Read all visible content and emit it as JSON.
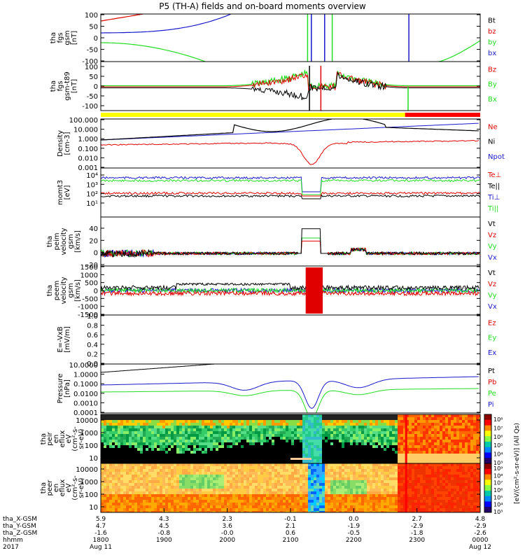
{
  "title": "P5 (TH-A) fields and on-board moments overview",
  "colors": {
    "black": "#000000",
    "red": "#e00000",
    "green": "#22dd22",
    "blue": "#1a1acc",
    "yellow": "#ffff00",
    "barRed": "#ff0000"
  },
  "chart_data": [
    {
      "type": "line",
      "panel": "fgs-gsm",
      "ylabel_lines": [
        "tha",
        "fgs",
        "gsm",
        "[nT]"
      ],
      "ylim": [
        -100,
        100
      ],
      "yticks": [
        "100",
        "50",
        "0",
        "-50",
        "-100"
      ],
      "legend": [
        {
          "name": "Bt",
          "color": "black"
        },
        {
          "name": "bz",
          "color": "red"
        },
        {
          "name": "by",
          "color": "green"
        },
        {
          "name": "bx",
          "color": "blue"
        }
      ]
    },
    {
      "type": "line",
      "panel": "fgs-gsm-t89",
      "ylabel_lines": [
        "tha",
        "fgs",
        "gsm-t89",
        "[nT]"
      ],
      "ylim": [
        -125,
        125
      ],
      "yticks": [
        "100",
        "50",
        "0",
        "-50",
        "-100"
      ],
      "legend": [
        {
          "name": "Bz",
          "color": "red"
        },
        {
          "name": "By",
          "color": "green"
        },
        {
          "name": "Bx",
          "color": "green"
        }
      ]
    },
    {
      "type": "line",
      "panel": "density",
      "ylabel_lines": [
        "Density",
        "[cm-3]"
      ],
      "yscale": "log",
      "yticks": [
        "100.000",
        "10.000",
        "1.000",
        "0.100",
        "0.010",
        "0.001"
      ],
      "legend": [
        {
          "name": "Ne",
          "color": "red"
        },
        {
          "name": "Ni",
          "color": "black"
        },
        {
          "name": "Npot",
          "color": "blue"
        }
      ]
    },
    {
      "type": "line",
      "panel": "temperature",
      "ylabel_lines": [
        "momt3",
        "[eV]"
      ],
      "yscale": "log",
      "yticks": [
        "10⁴",
        "10³",
        "10²",
        "10¹"
      ],
      "legend": [
        {
          "name": "Te⊥",
          "color": "red"
        },
        {
          "name": "Te||",
          "color": "black"
        },
        {
          "name": "Ti⊥",
          "color": "blue"
        },
        {
          "name": "Ti||",
          "color": "green"
        }
      ]
    },
    {
      "type": "line",
      "panel": "peim-velocity",
      "ylabel_lines": [
        "tha",
        "peim",
        "velocity",
        "gsm",
        "[km/s]"
      ],
      "ylim": [
        -20,
        60
      ],
      "yticks": [
        "40",
        "20",
        "0",
        "-20"
      ],
      "legend": [
        {
          "name": "Vt",
          "color": "black"
        },
        {
          "name": "Vz",
          "color": "red"
        },
        {
          "name": "Vy",
          "color": "green"
        },
        {
          "name": "Vx",
          "color": "blue"
        }
      ]
    },
    {
      "type": "line",
      "panel": "peem-velocity",
      "ylabel_lines": [
        "tha",
        "peem",
        "velocity",
        "gsm",
        "[km/s]"
      ],
      "ylim": [
        -1500,
        1500
      ],
      "yticks": [
        "1500",
        "1000",
        "500",
        "0",
        "-500",
        "-1000",
        "-1500"
      ],
      "legend": [
        {
          "name": "Vt",
          "color": "black"
        },
        {
          "name": "Vz",
          "color": "red"
        },
        {
          "name": "Vy",
          "color": "green"
        },
        {
          "name": "Vx",
          "color": "blue"
        }
      ]
    },
    {
      "type": "line",
      "panel": "efield",
      "ylabel_lines": [
        "E=-VxB",
        "[mV/m]"
      ],
      "ylim": [
        0,
        1
      ],
      "yticks": [
        "1.0",
        "0.8",
        "0.6",
        "0.4",
        "0.2",
        "0.0"
      ],
      "legend": [
        {
          "name": "Ez",
          "color": "red"
        },
        {
          "name": "Ey",
          "color": "green"
        },
        {
          "name": "Ex",
          "color": "blue"
        }
      ]
    },
    {
      "type": "line",
      "panel": "pressure",
      "ylabel_lines": [
        "Pressure",
        "[nPa]"
      ],
      "yscale": "log",
      "yticks": [
        "10.0000",
        "1.0000",
        "0.1000",
        "0.0100",
        "0.0010",
        "0.0001"
      ],
      "legend": [
        {
          "name": "Pt",
          "color": "black"
        },
        {
          "name": "Pb",
          "color": "red"
        },
        {
          "name": "Pe",
          "color": "green"
        },
        {
          "name": "Pi",
          "color": "blue"
        }
      ]
    },
    {
      "type": "heatmap",
      "panel": "peir-en-eflux",
      "ylabel_lines": [
        "tha",
        "peir",
        "en",
        "eflux",
        "eV",
        "(cm²-s-",
        "sr-eV)"
      ],
      "yscale": "log",
      "yticks": [
        "10000",
        "1000",
        "100",
        "10"
      ],
      "colorbar_ticks": [
        "10⁸",
        "10⁷",
        "10⁶",
        "10⁵",
        "10⁴",
        "10³"
      ]
    },
    {
      "type": "heatmap",
      "panel": "peer-en-eflux",
      "ylabel_lines": [
        "tha",
        "peer",
        "en",
        "eflux",
        "eV",
        "(cm²-s-",
        "sr-eV)"
      ],
      "yscale": "log",
      "yticks": [
        "10000",
        "1000",
        "100",
        "10"
      ],
      "colorbar_ticks": [
        "10⁹",
        "10⁸",
        "10⁷",
        "10⁶",
        "10⁵",
        "10⁴",
        "10³"
      ]
    }
  ],
  "colorbar_label": "[eV/(cm²-s-sr-eV)] (All Qs)",
  "xaxis": {
    "row_labels": [
      "tha_X-GSM",
      "tha_Y-GSM",
      "tha_Z-GSM",
      "hhmm",
      "2017"
    ],
    "ticks": [
      {
        "x_gsm": "5.9",
        "y_gsm": "4.7",
        "z_gsm": "-1.6",
        "hhmm": "1800",
        "date": "Aug 11"
      },
      {
        "x_gsm": "4.3",
        "y_gsm": "4.5",
        "z_gsm": "-0.8",
        "hhmm": "1900",
        "date": ""
      },
      {
        "x_gsm": "2.3",
        "y_gsm": "3.6",
        "z_gsm": "-0.0",
        "hhmm": "2000",
        "date": ""
      },
      {
        "x_gsm": "-0.1",
        "y_gsm": "2.1",
        "z_gsm": "0.6",
        "hhmm": "2100",
        "date": ""
      },
      {
        "x_gsm": "0.0",
        "y_gsm": "-1.9",
        "z_gsm": "-0.5",
        "hhmm": "2200",
        "date": ""
      },
      {
        "x_gsm": "2.7",
        "y_gsm": "-2.9",
        "z_gsm": "-1.8",
        "hhmm": "2300",
        "date": ""
      },
      {
        "x_gsm": "4.8",
        "y_gsm": "-2.9",
        "z_gsm": "-2.6",
        "hhmm": "0000",
        "date": "Aug 12"
      }
    ]
  }
}
